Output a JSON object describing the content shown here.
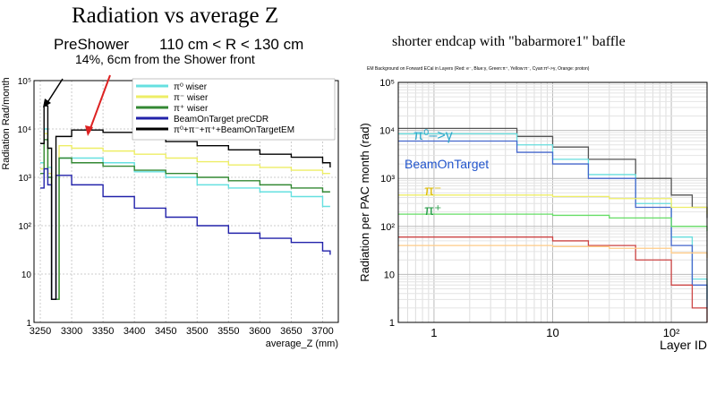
{
  "slide": {
    "title": "Radiation vs average Z",
    "right_title": "shorter endcap with \"babarmore1\" baffle",
    "preshower_label": "PreShower",
    "r_range": "110 cm < R < 130 cm",
    "shower_note": "14%, 6cm from the Shower front"
  },
  "chart_data": [
    {
      "type": "line",
      "xlabel": "average_Z (mm)",
      "ylabel": "Radiation Rad/month",
      "xlim": [
        3240,
        3725
      ],
      "ylim": [
        1,
        100000
      ],
      "yscale": "log",
      "xticks": [
        "3250",
        "3300",
        "3350",
        "3400",
        "3450",
        "3500",
        "3550",
        "3600",
        "3650",
        "3700"
      ],
      "yticks": [
        "1",
        "10",
        "10²",
        "10³",
        "10⁴",
        "10⁵"
      ],
      "legend_position": "top-right",
      "grid": true,
      "series": [
        {
          "name": "π⁰ wiser",
          "color": "#66e0e0",
          "x": [
            3250,
            3256,
            3262,
            3268,
            3280,
            3300,
            3350,
            3400,
            3450,
            3500,
            3550,
            3600,
            3650,
            3700,
            3712
          ],
          "y": [
            2000,
            10000,
            1600,
            3,
            2500,
            2500,
            2000,
            1300,
            1000,
            700,
            600,
            500,
            400,
            250,
            250
          ]
        },
        {
          "name": "π⁻ wiser",
          "color": "#eeee66",
          "x": [
            3250,
            3256,
            3262,
            3268,
            3280,
            3300,
            3350,
            3400,
            3450,
            3500,
            3550,
            3600,
            3650,
            3700,
            3712
          ],
          "y": [
            1500,
            8000,
            1200,
            3,
            4500,
            4000,
            3500,
            3000,
            2500,
            2100,
            1800,
            1600,
            1400,
            1200,
            1200
          ]
        },
        {
          "name": "π⁺ wiser",
          "color": "#338833",
          "x": [
            3250,
            3256,
            3262,
            3268,
            3280,
            3300,
            3350,
            3400,
            3450,
            3500,
            3550,
            3600,
            3650,
            3700,
            3712
          ],
          "y": [
            1200,
            6000,
            1000,
            3,
            2500,
            2000,
            1700,
            1400,
            1200,
            1000,
            850,
            700,
            600,
            500,
            500
          ]
        },
        {
          "name": "BeamOnTarget preCDR",
          "color": "#2222aa",
          "x": [
            3250,
            3256,
            3262,
            3268,
            3275,
            3300,
            3350,
            3400,
            3450,
            3500,
            3550,
            3600,
            3650,
            3700,
            3712
          ],
          "y": [
            600,
            1500,
            700,
            3,
            1100,
            700,
            400,
            230,
            150,
            100,
            70,
            55,
            45,
            30,
            25
          ]
        },
        {
          "name": "π⁰+π⁻+π⁺+BeamOnTargetEM",
          "color": "#000000",
          "x": [
            3250,
            3256,
            3262,
            3268,
            3275,
            3300,
            3350,
            3400,
            3450,
            3500,
            3550,
            3600,
            3650,
            3700,
            3712
          ],
          "y": [
            5000,
            30000,
            4000,
            3,
            7000,
            9500,
            8500,
            7000,
            5500,
            4500,
            3700,
            3000,
            2600,
            2000,
            1600
          ]
        }
      ]
    },
    {
      "type": "line",
      "title": "EM Background on Forward ECal in Layers (Red: e⁻, Blue:γ, Green:π⁺, Yellow:π⁻, Cyan:π⁰->γ, Orange: proton)",
      "xlabel": "Layer ID",
      "ylabel": "Radiation per PAC month (rad)",
      "xlim": [
        0.5,
        200
      ],
      "ylim": [
        1,
        100000
      ],
      "xscale": "log",
      "yscale": "log",
      "xticks": [
        "1",
        "10",
        "10²"
      ],
      "yticks": [
        "1",
        "10",
        "10²",
        "10³",
        "10⁴",
        "10⁵"
      ],
      "grid": true,
      "annotations": [
        {
          "text": "π⁰–>γ",
          "color": "#33aacc"
        },
        {
          "text": "BeamOnTarget",
          "color": "#2255cc"
        },
        {
          "text": "π⁻",
          "color": "#ddbb00"
        },
        {
          "text": "π⁺",
          "color": "#229944"
        }
      ],
      "series": [
        {
          "color": "#555555",
          "x": [
            0.5,
            3,
            5,
            10,
            20,
            50,
            100,
            150,
            200
          ],
          "y": [
            11000,
            11000,
            7500,
            4500,
            2500,
            1000,
            450,
            250,
            150
          ]
        },
        {
          "color": "#66dddd",
          "x": [
            0.5,
            3,
            5,
            10,
            20,
            50,
            100,
            150,
            200
          ],
          "y": [
            8500,
            8500,
            5000,
            2500,
            1200,
            300,
            60,
            8,
            3
          ]
        },
        {
          "color": "#4466cc",
          "x": [
            0.5,
            3,
            5,
            10,
            20,
            50,
            100,
            150,
            200
          ],
          "y": [
            6000,
            6000,
            3500,
            2000,
            1000,
            250,
            40,
            6,
            2
          ]
        },
        {
          "color": "#eeee66",
          "x": [
            0.5,
            3,
            10,
            30,
            100,
            200
          ],
          "y": [
            450,
            450,
            420,
            380,
            250,
            180
          ]
        },
        {
          "color": "#66dd66",
          "x": [
            0.5,
            3,
            10,
            30,
            100,
            200
          ],
          "y": [
            180,
            180,
            170,
            150,
            100,
            80
          ]
        },
        {
          "color": "#cc4444",
          "x": [
            0.5,
            3,
            10,
            20,
            50,
            100,
            150,
            200
          ],
          "y": [
            60,
            60,
            50,
            40,
            20,
            6,
            2,
            1
          ]
        },
        {
          "color": "#ffcc88",
          "x": [
            0.5,
            3,
            10,
            30,
            100,
            200
          ],
          "y": [
            40,
            40,
            38,
            35,
            28,
            22
          ]
        }
      ]
    }
  ]
}
